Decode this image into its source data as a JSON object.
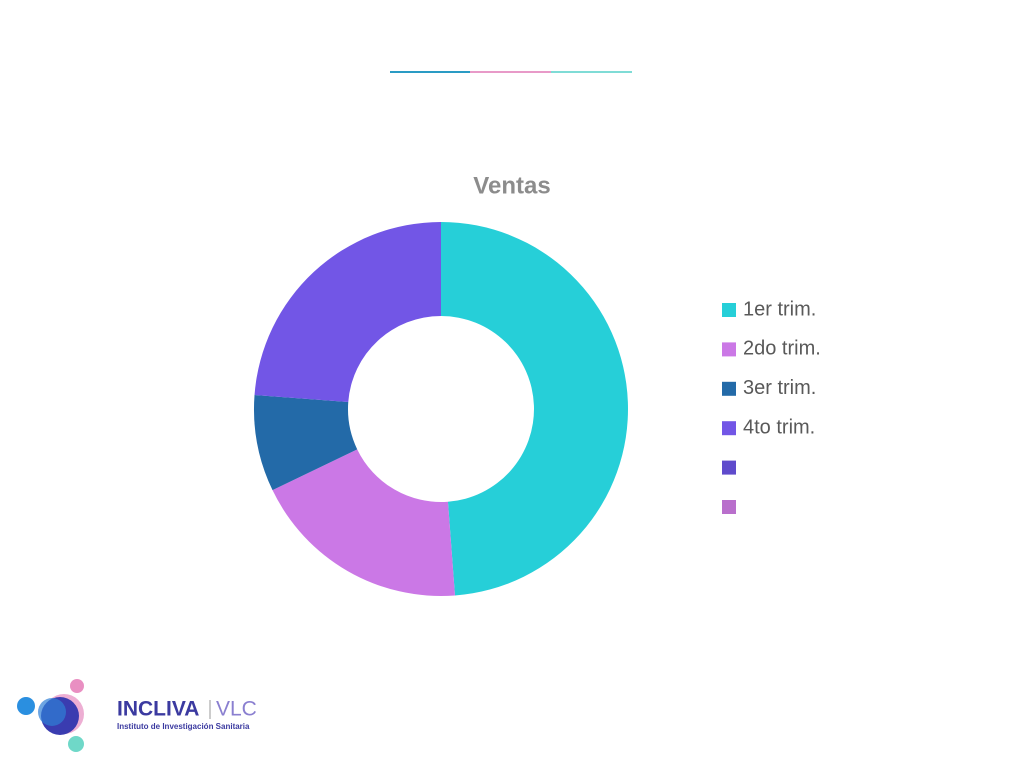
{
  "chart_data": {
    "type": "donut",
    "title": "Ventas",
    "categories": [
      "1er trim.",
      "2do trim.",
      "3er trim.",
      "4to trim.",
      null,
      null
    ],
    "values": [
      8.2,
      3.2,
      1.4,
      4,
      null,
      null
    ],
    "colors": [
      "#26cfd8",
      "#cb78e6",
      "#236aa8",
      "#7256e6",
      "#5f4bcc",
      "#b96fcc"
    ],
    "legend": "right"
  },
  "logo": {
    "name": "INCLIVA",
    "suffix": "VLC",
    "tagline": "Instituto de Investigación Sanitaria"
  }
}
